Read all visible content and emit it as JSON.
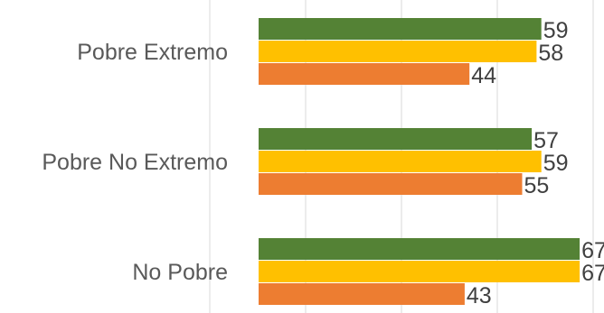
{
  "chart_data": {
    "type": "bar",
    "orientation": "horizontal",
    "categories": [
      "Pobre Extremo",
      "Pobre No Extremo",
      "No Pobre"
    ],
    "series": [
      {
        "values": [
          59,
          57,
          67
        ],
        "color": "#548235"
      },
      {
        "values": [
          58,
          59,
          67
        ],
        "color": "#FFC000"
      },
      {
        "values": [
          44,
          55,
          43
        ],
        "color": "#ED7D31"
      }
    ],
    "xlim": [
      0,
      70
    ],
    "grid": true,
    "legend": "none"
  }
}
